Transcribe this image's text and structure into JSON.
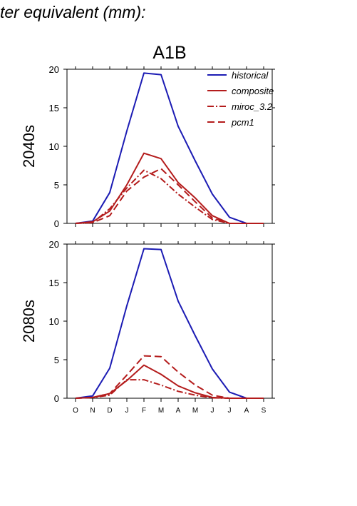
{
  "header": {
    "text": "ter equivalent (mm):"
  },
  "chart_data": {
    "type": "line",
    "title": "A1B",
    "categories": [
      "O",
      "N",
      "D",
      "J",
      "F",
      "M",
      "A",
      "M",
      "J",
      "J",
      "A",
      "S"
    ],
    "ylim": [
      0,
      20
    ],
    "yticks": [
      0,
      5,
      10,
      15,
      20
    ],
    "legend": {
      "position": "top-right",
      "entries": [
        "historical",
        "composite",
        "miroc_3.2",
        "pcm1"
      ]
    },
    "styles": {
      "historical": {
        "color": "#1c1cb4",
        "dash": ""
      },
      "composite": {
        "color": "#b41c1c",
        "dash": ""
      },
      "miroc_3.2": {
        "color": "#b41c1c",
        "dash": "9 3 2 3"
      },
      "pcm1": {
        "color": "#b41c1c",
        "dash": "10 5"
      }
    },
    "panels": [
      {
        "ylabel": "2040s",
        "series": [
          {
            "name": "historical",
            "values": [
              0,
              0.3,
              4.0,
              12.0,
              19.5,
              19.3,
              12.6,
              8.1,
              3.8,
              0.8,
              0,
              0
            ]
          },
          {
            "name": "composite",
            "values": [
              0,
              0.2,
              1.6,
              5.0,
              9.1,
              8.4,
              5.3,
              3.3,
              1.0,
              0,
              0,
              0
            ]
          },
          {
            "name": "miroc_3.2",
            "values": [
              0,
              0.1,
              1.9,
              4.6,
              6.9,
              5.8,
              3.8,
              2.1,
              0.5,
              0,
              0,
              0
            ]
          },
          {
            "name": "pcm1",
            "values": [
              0,
              0.1,
              1.0,
              4.2,
              6.0,
              7.1,
              5.0,
              2.8,
              0.7,
              0,
              0,
              0
            ]
          }
        ]
      },
      {
        "ylabel": "2080s",
        "series": [
          {
            "name": "historical",
            "values": [
              0,
              0.3,
              3.9,
              12.0,
              19.4,
              19.3,
              12.6,
              8.1,
              3.8,
              0.8,
              0,
              0
            ]
          },
          {
            "name": "composite",
            "values": [
              0,
              0.1,
              0.6,
              2.3,
              4.3,
              3.1,
              1.6,
              0.7,
              0.1,
              0,
              0,
              0
            ]
          },
          {
            "name": "miroc_3.2",
            "values": [
              0,
              0.1,
              0.4,
              2.4,
              2.4,
              1.7,
              0.9,
              0.4,
              0.05,
              0,
              0,
              0
            ]
          },
          {
            "name": "pcm1",
            "values": [
              0,
              0.1,
              0.6,
              3.0,
              5.5,
              5.4,
              3.4,
              1.7,
              0.4,
              0,
              0,
              0
            ]
          }
        ]
      }
    ]
  }
}
